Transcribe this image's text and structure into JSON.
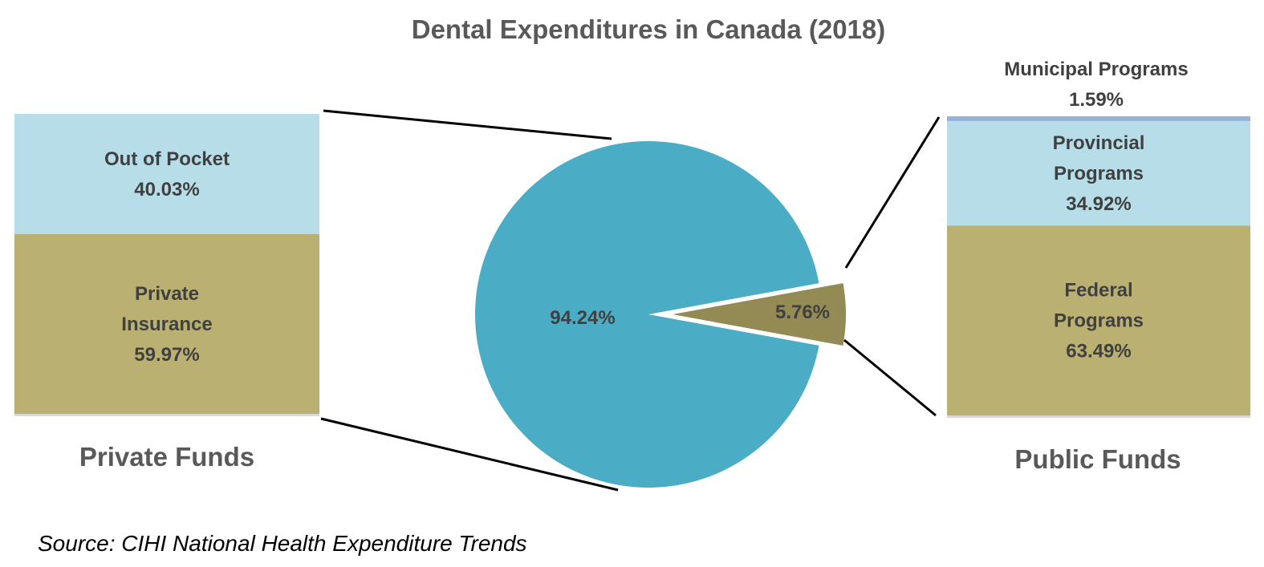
{
  "chart_data": {
    "type": "bar-of-pie",
    "title": "Dental Expenditures in Canada (2018)",
    "source": "Source: CIHI National Health Expenditure Trends",
    "pie": {
      "slices": [
        {
          "label": "94.24%",
          "value": 94.24,
          "color": "#4BACC6"
        },
        {
          "label": "5.76%",
          "value": 5.76,
          "color": "#948A54"
        }
      ]
    },
    "bars": [
      {
        "name": "Private Funds",
        "segments": [
          {
            "label": "Private Insurance",
            "value": 59.97,
            "value_text": "59.97%",
            "color": "#B9B071"
          },
          {
            "label": "Out of Pocket",
            "value": 40.03,
            "value_text": "40.03%",
            "color": "#B7DEE8"
          }
        ]
      },
      {
        "name": "Public Funds",
        "segments": [
          {
            "label": "Federal Programs",
            "value": 63.49,
            "value_text": "63.49%",
            "color": "#B9B071"
          },
          {
            "label": "Provincial Programs",
            "value": 34.92,
            "value_text": "34.92%",
            "color": "#B7DEE8"
          },
          {
            "label": "Municipal Programs",
            "value": 1.59,
            "value_text": "1.59%",
            "color": "#95B3D7"
          }
        ]
      }
    ],
    "colors": {
      "text_dark": "#404040",
      "text_heading": "#595959",
      "baseline": "#D9D9D9",
      "connector": "#000000"
    }
  }
}
